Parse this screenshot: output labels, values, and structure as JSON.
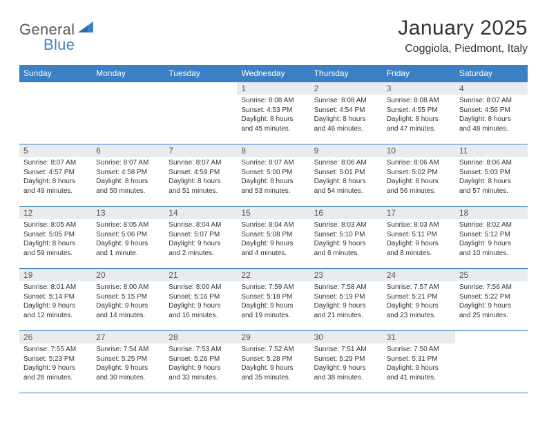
{
  "logo": {
    "text1": "General",
    "text2": "Blue"
  },
  "title": "January 2025",
  "location": "Coggiola, Piedmont, Italy",
  "colors": {
    "header_bg": "#3b7fc4",
    "header_text": "#ffffff",
    "daynum_bg": "#e9ecef",
    "border": "#3b7fc4",
    "body_text": "#333333",
    "background": "#ffffff"
  },
  "typography": {
    "title_fontsize": 30,
    "location_fontsize": 16,
    "weekday_fontsize": 12,
    "daynum_fontsize": 12,
    "cell_fontsize": 10
  },
  "weekdays": [
    "Sunday",
    "Monday",
    "Tuesday",
    "Wednesday",
    "Thursday",
    "Friday",
    "Saturday"
  ],
  "weeks": [
    [
      {
        "day": "",
        "sunrise": "",
        "sunset": "",
        "daylight": ""
      },
      {
        "day": "",
        "sunrise": "",
        "sunset": "",
        "daylight": ""
      },
      {
        "day": "",
        "sunrise": "",
        "sunset": "",
        "daylight": ""
      },
      {
        "day": "1",
        "sunrise": "Sunrise: 8:08 AM",
        "sunset": "Sunset: 4:53 PM",
        "daylight": "Daylight: 8 hours and 45 minutes."
      },
      {
        "day": "2",
        "sunrise": "Sunrise: 8:08 AM",
        "sunset": "Sunset: 4:54 PM",
        "daylight": "Daylight: 8 hours and 46 minutes."
      },
      {
        "day": "3",
        "sunrise": "Sunrise: 8:08 AM",
        "sunset": "Sunset: 4:55 PM",
        "daylight": "Daylight: 8 hours and 47 minutes."
      },
      {
        "day": "4",
        "sunrise": "Sunrise: 8:07 AM",
        "sunset": "Sunset: 4:56 PM",
        "daylight": "Daylight: 8 hours and 48 minutes."
      }
    ],
    [
      {
        "day": "5",
        "sunrise": "Sunrise: 8:07 AM",
        "sunset": "Sunset: 4:57 PM",
        "daylight": "Daylight: 8 hours and 49 minutes."
      },
      {
        "day": "6",
        "sunrise": "Sunrise: 8:07 AM",
        "sunset": "Sunset: 4:58 PM",
        "daylight": "Daylight: 8 hours and 50 minutes."
      },
      {
        "day": "7",
        "sunrise": "Sunrise: 8:07 AM",
        "sunset": "Sunset: 4:59 PM",
        "daylight": "Daylight: 8 hours and 51 minutes."
      },
      {
        "day": "8",
        "sunrise": "Sunrise: 8:07 AM",
        "sunset": "Sunset: 5:00 PM",
        "daylight": "Daylight: 8 hours and 53 minutes."
      },
      {
        "day": "9",
        "sunrise": "Sunrise: 8:06 AM",
        "sunset": "Sunset: 5:01 PM",
        "daylight": "Daylight: 8 hours and 54 minutes."
      },
      {
        "day": "10",
        "sunrise": "Sunrise: 8:06 AM",
        "sunset": "Sunset: 5:02 PM",
        "daylight": "Daylight: 8 hours and 56 minutes."
      },
      {
        "day": "11",
        "sunrise": "Sunrise: 8:06 AM",
        "sunset": "Sunset: 5:03 PM",
        "daylight": "Daylight: 8 hours and 57 minutes."
      }
    ],
    [
      {
        "day": "12",
        "sunrise": "Sunrise: 8:05 AM",
        "sunset": "Sunset: 5:05 PM",
        "daylight": "Daylight: 8 hours and 59 minutes."
      },
      {
        "day": "13",
        "sunrise": "Sunrise: 8:05 AM",
        "sunset": "Sunset: 5:06 PM",
        "daylight": "Daylight: 9 hours and 1 minute."
      },
      {
        "day": "14",
        "sunrise": "Sunrise: 8:04 AM",
        "sunset": "Sunset: 5:07 PM",
        "daylight": "Daylight: 9 hours and 2 minutes."
      },
      {
        "day": "15",
        "sunrise": "Sunrise: 8:04 AM",
        "sunset": "Sunset: 5:08 PM",
        "daylight": "Daylight: 9 hours and 4 minutes."
      },
      {
        "day": "16",
        "sunrise": "Sunrise: 8:03 AM",
        "sunset": "Sunset: 5:10 PM",
        "daylight": "Daylight: 9 hours and 6 minutes."
      },
      {
        "day": "17",
        "sunrise": "Sunrise: 8:03 AM",
        "sunset": "Sunset: 5:11 PM",
        "daylight": "Daylight: 9 hours and 8 minutes."
      },
      {
        "day": "18",
        "sunrise": "Sunrise: 8:02 AM",
        "sunset": "Sunset: 5:12 PM",
        "daylight": "Daylight: 9 hours and 10 minutes."
      }
    ],
    [
      {
        "day": "19",
        "sunrise": "Sunrise: 8:01 AM",
        "sunset": "Sunset: 5:14 PM",
        "daylight": "Daylight: 9 hours and 12 minutes."
      },
      {
        "day": "20",
        "sunrise": "Sunrise: 8:00 AM",
        "sunset": "Sunset: 5:15 PM",
        "daylight": "Daylight: 9 hours and 14 minutes."
      },
      {
        "day": "21",
        "sunrise": "Sunrise: 8:00 AM",
        "sunset": "Sunset: 5:16 PM",
        "daylight": "Daylight: 9 hours and 16 minutes."
      },
      {
        "day": "22",
        "sunrise": "Sunrise: 7:59 AM",
        "sunset": "Sunset: 5:18 PM",
        "daylight": "Daylight: 9 hours and 19 minutes."
      },
      {
        "day": "23",
        "sunrise": "Sunrise: 7:58 AM",
        "sunset": "Sunset: 5:19 PM",
        "daylight": "Daylight: 9 hours and 21 minutes."
      },
      {
        "day": "24",
        "sunrise": "Sunrise: 7:57 AM",
        "sunset": "Sunset: 5:21 PM",
        "daylight": "Daylight: 9 hours and 23 minutes."
      },
      {
        "day": "25",
        "sunrise": "Sunrise: 7:56 AM",
        "sunset": "Sunset: 5:22 PM",
        "daylight": "Daylight: 9 hours and 25 minutes."
      }
    ],
    [
      {
        "day": "26",
        "sunrise": "Sunrise: 7:55 AM",
        "sunset": "Sunset: 5:23 PM",
        "daylight": "Daylight: 9 hours and 28 minutes."
      },
      {
        "day": "27",
        "sunrise": "Sunrise: 7:54 AM",
        "sunset": "Sunset: 5:25 PM",
        "daylight": "Daylight: 9 hours and 30 minutes."
      },
      {
        "day": "28",
        "sunrise": "Sunrise: 7:53 AM",
        "sunset": "Sunset: 5:26 PM",
        "daylight": "Daylight: 9 hours and 33 minutes."
      },
      {
        "day": "29",
        "sunrise": "Sunrise: 7:52 AM",
        "sunset": "Sunset: 5:28 PM",
        "daylight": "Daylight: 9 hours and 35 minutes."
      },
      {
        "day": "30",
        "sunrise": "Sunrise: 7:51 AM",
        "sunset": "Sunset: 5:29 PM",
        "daylight": "Daylight: 9 hours and 38 minutes."
      },
      {
        "day": "31",
        "sunrise": "Sunrise: 7:50 AM",
        "sunset": "Sunset: 5:31 PM",
        "daylight": "Daylight: 9 hours and 41 minutes."
      },
      {
        "day": "",
        "sunrise": "",
        "sunset": "",
        "daylight": ""
      }
    ]
  ]
}
